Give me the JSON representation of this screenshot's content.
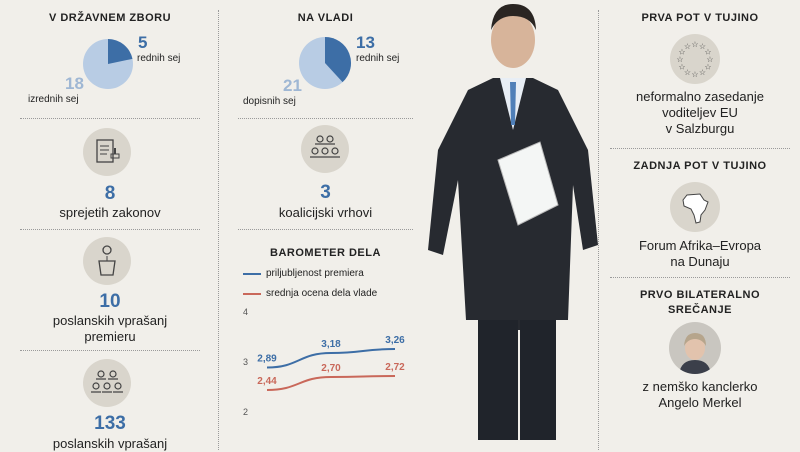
{
  "col1": {
    "title": "V DRŽAVNEM ZBORU",
    "regular_num": "5",
    "regular_label": "rednih sej",
    "extra_num": "18",
    "extra_label": "izrednih sej",
    "pie_fraction": 0.217,
    "laws_num": "8",
    "laws_label": "sprejetih zakonov",
    "q_pm_num": "10",
    "q_pm_label1": "poslanskih vprašanj",
    "q_pm_label2": "premieru",
    "q_num": "133",
    "q_label": "poslanskih vprašanj"
  },
  "col2": {
    "title": "NA VLADI",
    "regular_num": "13",
    "regular_label": "rednih sej",
    "corr_num": "21",
    "corr_label": "dopisnih sej",
    "pie_fraction": 0.382,
    "coal_num": "3",
    "coal_label": "koalicijski vrhovi"
  },
  "chart_data": {
    "type": "line",
    "title": "BAROMETER DELA",
    "ylim": [
      2,
      4
    ],
    "yticks": [
      "4",
      "3",
      "2"
    ],
    "series": [
      {
        "name": "priljubljenost premiera",
        "color": "#3d6ea6",
        "values": [
          2.89,
          3.18,
          3.26
        ],
        "labels": [
          "2,89",
          "3,18",
          "3,26"
        ]
      },
      {
        "name": "srednja ocena dela vlade",
        "color": "#c9685a",
        "values": [
          2.44,
          2.7,
          2.72
        ],
        "labels": [
          "2,44",
          "2,70",
          "2,72"
        ]
      }
    ]
  },
  "col3": {
    "trip_title": "PRVA POT V TUJINO",
    "trip_text1": "neformalno zasedanje",
    "trip_text2": "voditeljev EU",
    "trip_text3": "v Salzburgu",
    "last_title": "ZADNJA POT V TUJINO",
    "last_text1": "Forum Afrika–Evropa",
    "last_text2": "na Dunaju",
    "bi_title1": "PRVO BILATERALNO",
    "bi_title2": "SREČANJE",
    "bi_text1": "z nemško kanclerko",
    "bi_text2": "Angelo Merkel"
  },
  "colors": {
    "blue": "#3d6ea6",
    "light_blue": "#b8cce4",
    "red": "#c9685a",
    "icon_bg": "#d9d5cc"
  }
}
